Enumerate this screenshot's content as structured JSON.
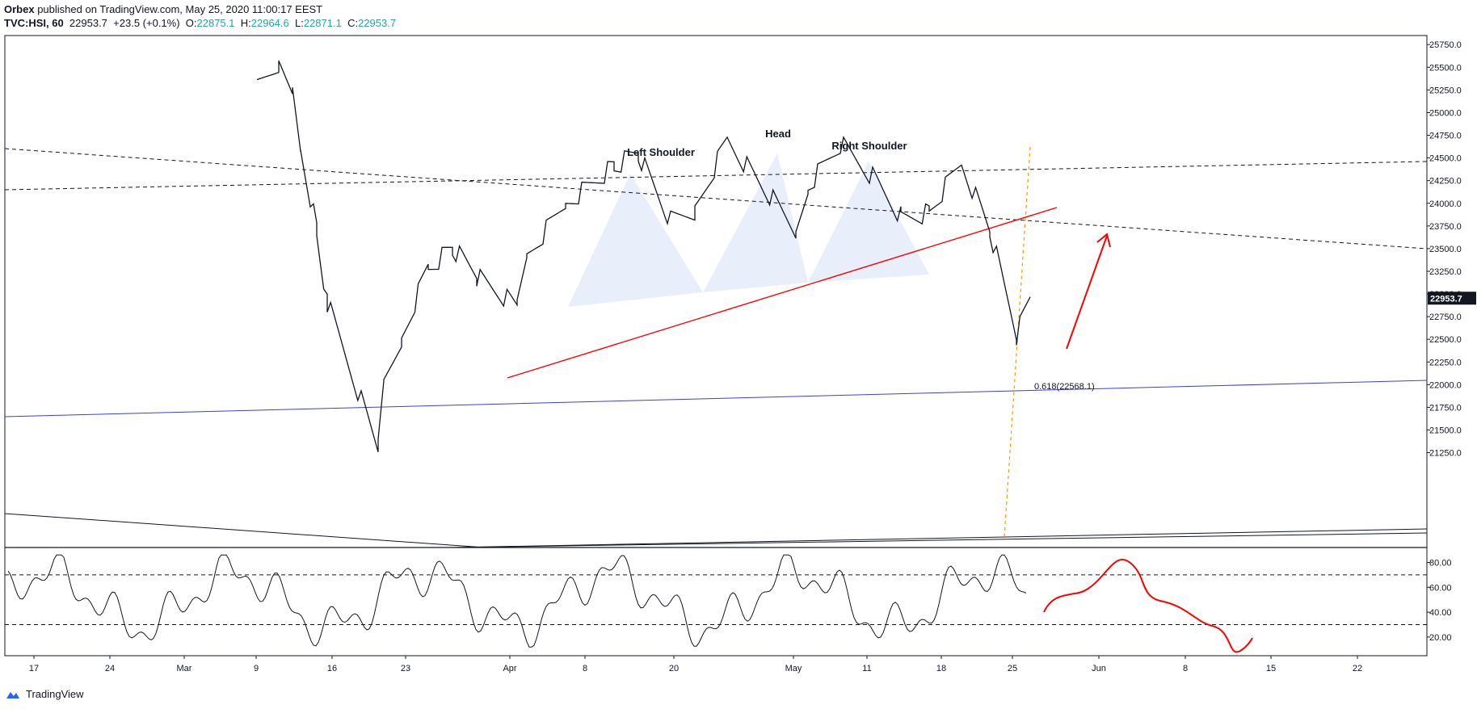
{
  "header": {
    "publisher": "Orbex",
    "published_text": "published on TradingView.com, May 25, 2020 11:00:17 EEST",
    "symbol": "TVC:HSI, 60",
    "last": "22953.7",
    "change": "+23.5 (+0.1%)",
    "o_label": "O:",
    "o": "22875.1",
    "h_label": "H:",
    "h": "22964.6",
    "l_label": "L:",
    "l": "22871.1",
    "c_label": "C:",
    "c": "22953.7"
  },
  "footer": {
    "brand": "TradingView"
  },
  "colors": {
    "trendline": "#ff0000",
    "fib_line": "#3f3fd6",
    "vertical_dashed": "#ff9800",
    "pattern_fill": "#e8eefa",
    "price_tag_bg": "#131722",
    "positive": "#26a69a"
  },
  "chart_data": [
    {
      "type": "line",
      "title": "",
      "ylim": [
        21100,
        25850
      ],
      "y_ticks": [
        "25750.0",
        "25500.0",
        "25250.0",
        "25000.0",
        "24750.0",
        "24500.0",
        "24250.0",
        "24000.0",
        "23750.0",
        "23500.0",
        "23250.0",
        "23000.0",
        "22750.0",
        "22500.0",
        "22250.0",
        "22000.0",
        "21750.0",
        "21500.0",
        "21250.0"
      ],
      "x_ticks": [
        "17",
        "24",
        "Mar",
        "9",
        "16",
        "23",
        "Apr",
        "8",
        "20",
        "May",
        "11",
        "18",
        "25",
        "Jun",
        "8",
        "15",
        "22"
      ],
      "last_price_tag": "22953.7",
      "series_approx": [
        {
          "x": "Mar 9",
          "y": 25250
        },
        {
          "x": "Mar 10",
          "y": 25500
        },
        {
          "x": "Mar 12",
          "y": 25250
        },
        {
          "x": "Mar 13",
          "y": 24600
        },
        {
          "x": "Mar 16",
          "y": 23700
        },
        {
          "x": "Mar 18",
          "y": 22900
        },
        {
          "x": "Mar 19",
          "y": 21300
        },
        {
          "x": "Mar 20",
          "y": 22000
        },
        {
          "x": "Mar 23",
          "y": 22500
        },
        {
          "x": "Mar 25",
          "y": 23300
        },
        {
          "x": "Mar 27",
          "y": 23500
        },
        {
          "x": "Mar 31",
          "y": 23200
        },
        {
          "x": "Apr 2",
          "y": 22850
        },
        {
          "x": "Apr 6",
          "y": 23400
        },
        {
          "x": "Apr 8",
          "y": 24000
        },
        {
          "x": "Apr 14",
          "y": 24400
        },
        {
          "x": "Apr 17",
          "y": 24550
        },
        {
          "x": "Apr 21",
          "y": 23800
        },
        {
          "x": "Apr 23",
          "y": 23900
        },
        {
          "x": "Apr 29",
          "y": 24700
        },
        {
          "x": "May 4",
          "y": 23700
        },
        {
          "x": "May 7",
          "y": 24200
        },
        {
          "x": "May 11",
          "y": 24650
        },
        {
          "x": "May 13",
          "y": 24300
        },
        {
          "x": "May 15",
          "y": 23850
        },
        {
          "x": "May 18",
          "y": 23900
        },
        {
          "x": "May 20",
          "y": 24450
        },
        {
          "x": "May 22",
          "y": 23700
        },
        {
          "x": "May 25",
          "y": 22550
        },
        {
          "x": "May 25b",
          "y": 22953.7
        }
      ],
      "annotations": [
        {
          "text": "Left Shoulder"
        },
        {
          "text": "Head"
        },
        {
          "text": "Right Shoulder"
        },
        {
          "text": "0.618(22568.1)",
          "value": 22568.1
        }
      ]
    },
    {
      "type": "line",
      "title": "",
      "ylim": [
        5,
        92
      ],
      "y_ticks": [
        "80.00",
        "60.00",
        "40.00",
        "20.00"
      ],
      "levels": [
        70,
        30
      ]
    }
  ]
}
